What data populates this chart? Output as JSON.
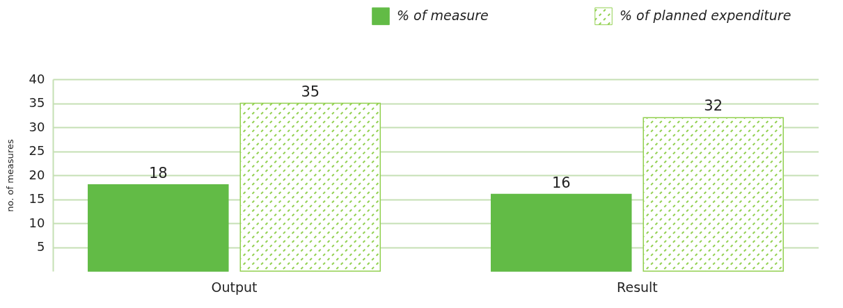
{
  "chart_data": {
    "type": "bar",
    "ylabel": "no. of measures",
    "categories": [
      "Output",
      "Result"
    ],
    "series": [
      {
        "name": "% of measure",
        "color": "#62bb46",
        "values": [
          18,
          16
        ]
      },
      {
        "name": "% of planned expenditure",
        "color": "#92d050",
        "values": [
          35,
          32
        ]
      }
    ],
    "ylim": [
      0,
      40
    ],
    "yticks": [
      5,
      10,
      15,
      20,
      25,
      30,
      35,
      40
    ],
    "grid": "y",
    "legend": "top right",
    "data_labels": true
  }
}
